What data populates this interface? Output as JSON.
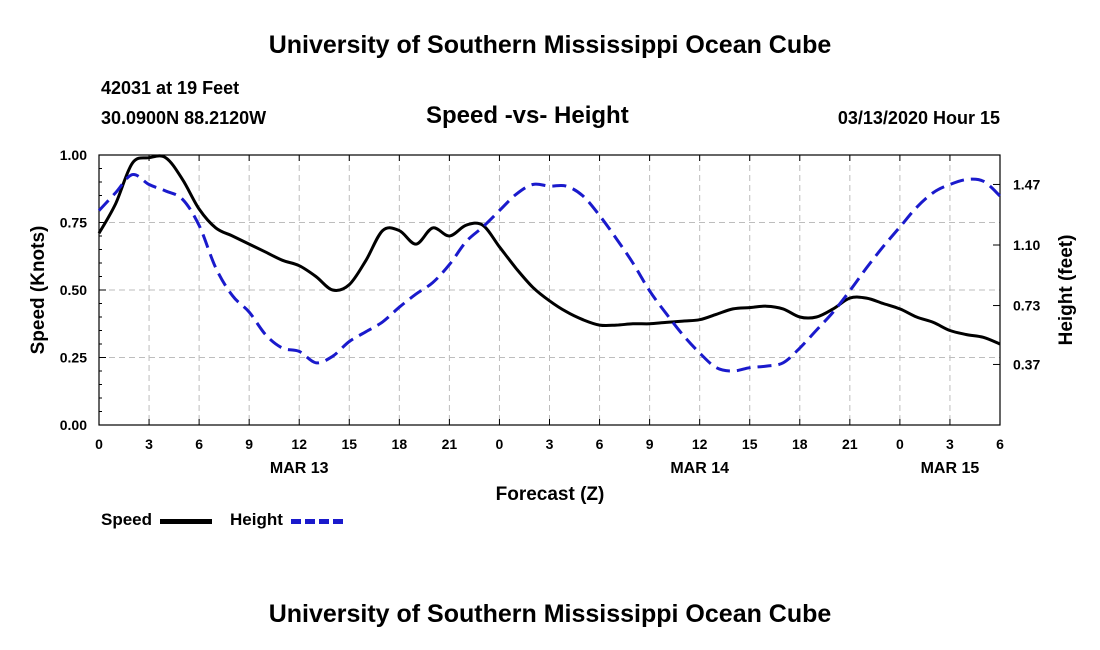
{
  "page": {
    "title_top": "University of Southern Mississippi Ocean Cube",
    "title_bottom": "University of Southern Mississippi Ocean Cube",
    "station": "42031 at 19 Feet",
    "coords": "30.0900N 88.2120W",
    "subtitle": "Speed -vs- Height",
    "date": "03/13/2020 Hour 15"
  },
  "legend": {
    "speed_label": "Speed",
    "height_label": "Height"
  },
  "colors": {
    "speed": "#000000",
    "height": "#1a1acc",
    "grid": "#bdbdbd"
  },
  "chart_data": {
    "type": "line",
    "xlabel": "Forecast (Z)",
    "ylabel": "Speed (Knots)",
    "y2label": "Height (feet)",
    "x_range": [
      0,
      54
    ],
    "ylim": [
      0,
      1.0
    ],
    "y2lim": [
      0,
      1.65
    ],
    "x_tick_labels": [
      "0",
      "3",
      "6",
      "9",
      "12",
      "15",
      "18",
      "21",
      "0",
      "3",
      "6",
      "9",
      "12",
      "15",
      "18",
      "21",
      "0",
      "3",
      "6"
    ],
    "date_labels": [
      {
        "x": 12,
        "label": "MAR 13"
      },
      {
        "x": 36,
        "label": "MAR 14"
      },
      {
        "x": 51,
        "label": "MAR 15"
      }
    ],
    "y_ticks": [
      {
        "v": 0.0,
        "label": "0.00"
      },
      {
        "v": 0.25,
        "label": "0.25"
      },
      {
        "v": 0.5,
        "label": "0.50"
      },
      {
        "v": 0.75,
        "label": "0.75"
      },
      {
        "v": 1.0,
        "label": "1.00"
      }
    ],
    "y2_ticks": [
      {
        "v": 0.37,
        "label": "0.37"
      },
      {
        "v": 0.73,
        "label": "0.73"
      },
      {
        "v": 1.1,
        "label": "1.10"
      },
      {
        "v": 1.47,
        "label": "1.47"
      }
    ],
    "grid": true,
    "series": [
      {
        "name": "Speed",
        "axis": "left",
        "style": "solid",
        "points": [
          [
            0,
            0.71
          ],
          [
            1,
            0.82
          ],
          [
            2,
            0.97
          ],
          [
            3,
            0.99
          ],
          [
            4,
            0.99
          ],
          [
            5,
            0.91
          ],
          [
            6,
            0.8
          ],
          [
            7,
            0.73
          ],
          [
            8,
            0.7
          ],
          [
            9,
            0.67
          ],
          [
            10,
            0.64
          ],
          [
            11,
            0.61
          ],
          [
            12,
            0.59
          ],
          [
            13,
            0.55
          ],
          [
            14,
            0.5
          ],
          [
            15,
            0.52
          ],
          [
            16,
            0.61
          ],
          [
            17,
            0.72
          ],
          [
            18,
            0.72
          ],
          [
            19,
            0.67
          ],
          [
            20,
            0.73
          ],
          [
            21,
            0.7
          ],
          [
            22,
            0.74
          ],
          [
            23,
            0.74
          ],
          [
            24,
            0.66
          ],
          [
            25,
            0.58
          ],
          [
            26,
            0.51
          ],
          [
            27,
            0.46
          ],
          [
            28,
            0.42
          ],
          [
            29,
            0.39
          ],
          [
            30,
            0.37
          ],
          [
            31,
            0.37
          ],
          [
            32,
            0.375
          ],
          [
            33,
            0.375
          ],
          [
            34,
            0.38
          ],
          [
            35,
            0.385
          ],
          [
            36,
            0.39
          ],
          [
            37,
            0.41
          ],
          [
            38,
            0.43
          ],
          [
            39,
            0.435
          ],
          [
            40,
            0.44
          ],
          [
            41,
            0.43
          ],
          [
            42,
            0.4
          ],
          [
            43,
            0.4
          ],
          [
            44,
            0.43
          ],
          [
            45,
            0.47
          ],
          [
            46,
            0.47
          ],
          [
            47,
            0.45
          ],
          [
            48,
            0.43
          ],
          [
            49,
            0.4
          ],
          [
            50,
            0.38
          ],
          [
            51,
            0.35
          ],
          [
            52,
            0.335
          ],
          [
            53,
            0.325
          ],
          [
            54,
            0.3
          ]
        ]
      },
      {
        "name": "Height",
        "axis": "right",
        "style": "dashed",
        "points": [
          [
            0,
            1.31
          ],
          [
            1,
            1.42
          ],
          [
            2,
            1.53
          ],
          [
            3,
            1.47
          ],
          [
            4,
            1.43
          ],
          [
            5,
            1.38
          ],
          [
            6,
            1.22
          ],
          [
            7,
            0.96
          ],
          [
            8,
            0.79
          ],
          [
            9,
            0.69
          ],
          [
            10,
            0.55
          ],
          [
            11,
            0.47
          ],
          [
            12,
            0.45
          ],
          [
            13,
            0.38
          ],
          [
            14,
            0.42
          ],
          [
            15,
            0.51
          ],
          [
            16,
            0.57
          ],
          [
            17,
            0.63
          ],
          [
            18,
            0.72
          ],
          [
            19,
            0.8
          ],
          [
            20,
            0.87
          ],
          [
            21,
            0.98
          ],
          [
            22,
            1.12
          ],
          [
            23,
            1.21
          ],
          [
            24,
            1.31
          ],
          [
            25,
            1.41
          ],
          [
            26,
            1.47
          ],
          [
            27,
            1.46
          ],
          [
            28,
            1.46
          ],
          [
            29,
            1.4
          ],
          [
            30,
            1.28
          ],
          [
            31,
            1.14
          ],
          [
            32,
            0.99
          ],
          [
            33,
            0.82
          ],
          [
            34,
            0.68
          ],
          [
            35,
            0.55
          ],
          [
            36,
            0.44
          ],
          [
            37,
            0.35
          ],
          [
            38,
            0.33
          ],
          [
            39,
            0.35
          ],
          [
            40,
            0.36
          ],
          [
            41,
            0.38
          ],
          [
            42,
            0.47
          ],
          [
            43,
            0.58
          ],
          [
            44,
            0.69
          ],
          [
            45,
            0.82
          ],
          [
            46,
            0.96
          ],
          [
            47,
            1.09
          ],
          [
            48,
            1.21
          ],
          [
            49,
            1.33
          ],
          [
            50,
            1.42
          ],
          [
            51,
            1.47
          ],
          [
            52,
            1.5
          ],
          [
            53,
            1.49
          ],
          [
            54,
            1.4
          ]
        ]
      }
    ]
  }
}
